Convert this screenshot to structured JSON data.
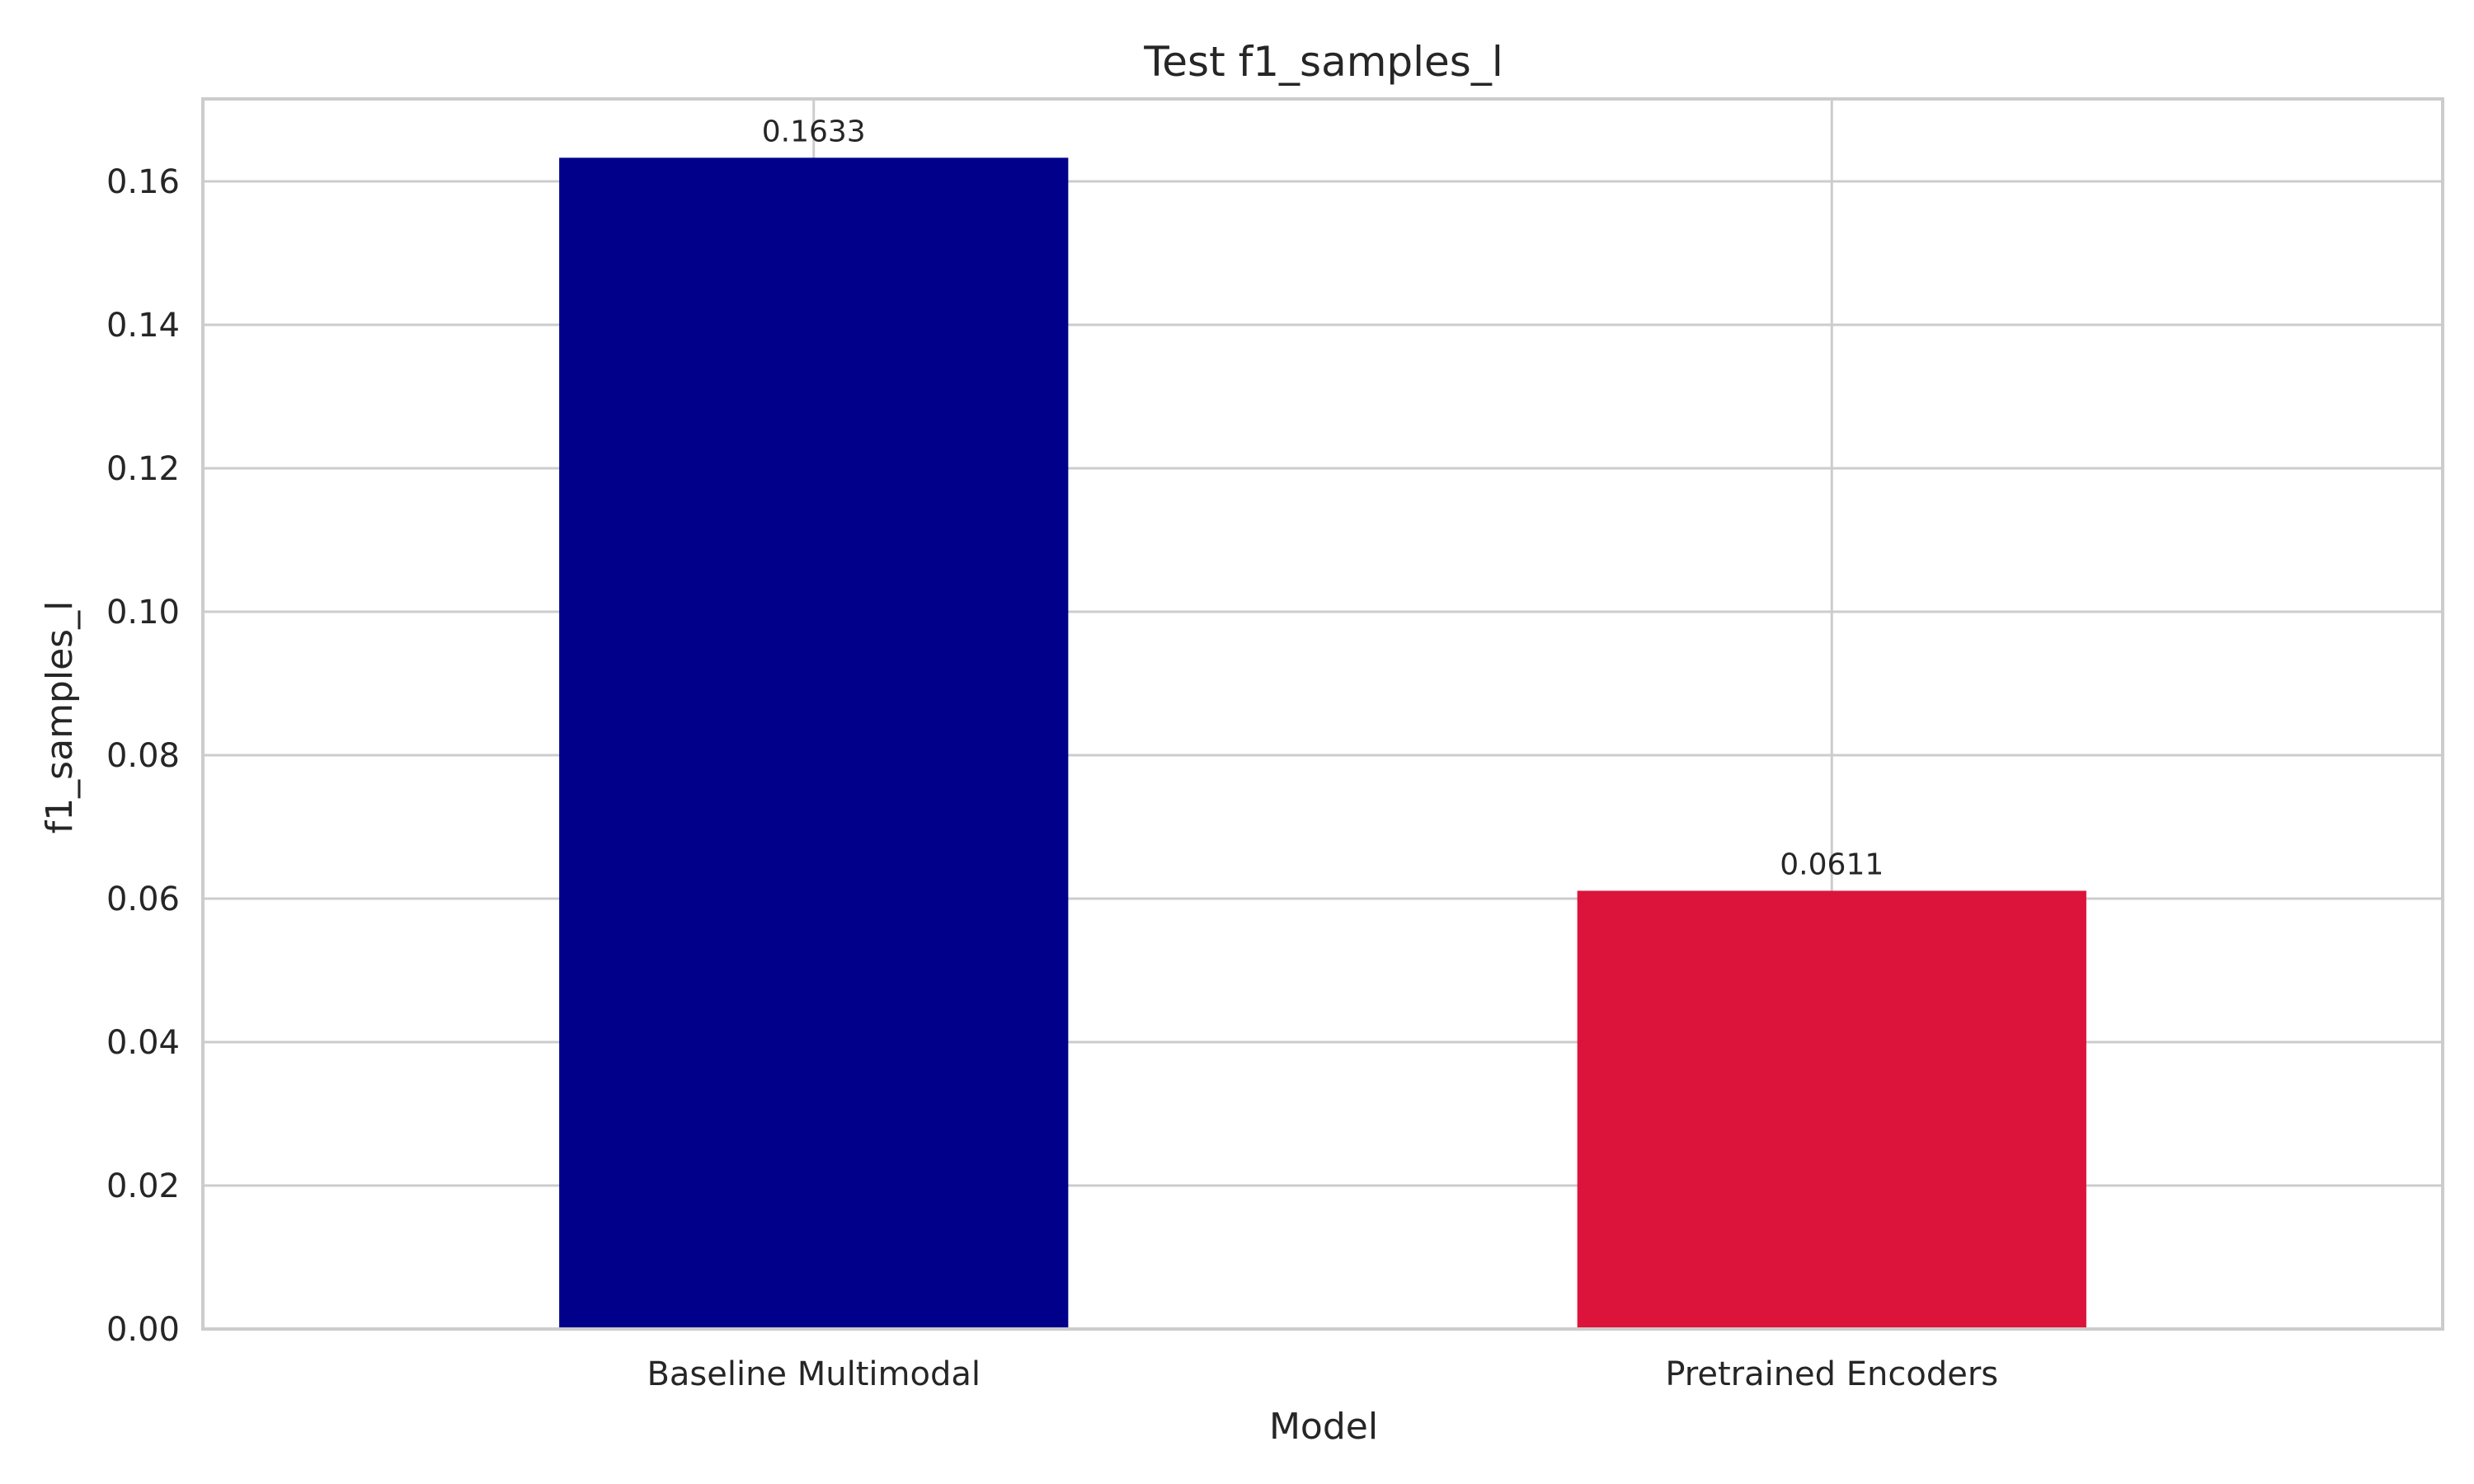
{
  "chart_data": {
    "type": "bar",
    "title": "Test f1_samples_l",
    "xlabel": "Model",
    "ylabel": "f1_samples_l",
    "categories": [
      "Baseline Multimodal",
      "Pretrained Encoders"
    ],
    "values": [
      0.1633,
      0.0611
    ],
    "data_labels": [
      "0.1633",
      "0.0611"
    ],
    "colors": [
      "#00008b",
      "#dc143c"
    ],
    "ylim": [
      0,
      0.1715
    ],
    "yticks": [
      0.0,
      0.02,
      0.04,
      0.06,
      0.08,
      0.1,
      0.12,
      0.14,
      0.16
    ],
    "ytick_labels": [
      "0.00",
      "0.02",
      "0.04",
      "0.06",
      "0.08",
      "0.10",
      "0.12",
      "0.14",
      "0.16"
    ],
    "grid": true,
    "legend": "none"
  }
}
